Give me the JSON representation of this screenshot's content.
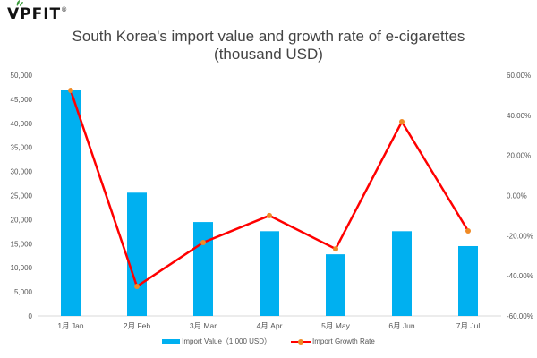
{
  "logo": {
    "text": "VPFIT",
    "mark": "®"
  },
  "chart_data": {
    "type": "bar",
    "title": "South Korea's import value and growth rate of e-cigarettes",
    "subtitle": "(thousand USD)",
    "categories": [
      "1月 Jan",
      "2月 Feb",
      "3月 Mar",
      "4月 Apr",
      "5月 May",
      "6月 Jun",
      "7月 Jul"
    ],
    "series": [
      {
        "name": "Import Value（1,000 USD）",
        "type": "bar",
        "axis": "left",
        "color": "#00b0f0",
        "values": [
          47000,
          25600,
          19500,
          17600,
          12800,
          17600,
          14500
        ]
      },
      {
        "name": "Import Growth Rate",
        "type": "line",
        "axis": "right",
        "color": "#ff0000",
        "marker_color": "#f08a24",
        "values": [
          52.4,
          -45.3,
          -23.4,
          -10.0,
          -26.6,
          36.8,
          -17.6
        ]
      }
    ],
    "left_axis": {
      "ylim": [
        0,
        50000
      ],
      "ticks": [
        "0",
        "5,000",
        "10,000",
        "15,000",
        "20,000",
        "25,000",
        "30,000",
        "35,000",
        "40,000",
        "45,000",
        "50,000"
      ]
    },
    "right_axis": {
      "ylim": [
        -60,
        60
      ],
      "ticks": [
        "-60.00%",
        "-40.00%",
        "-20.00%",
        "0.00%",
        "20.00%",
        "40.00%",
        "60.00%"
      ]
    },
    "legend": "bottom",
    "grid": false
  }
}
